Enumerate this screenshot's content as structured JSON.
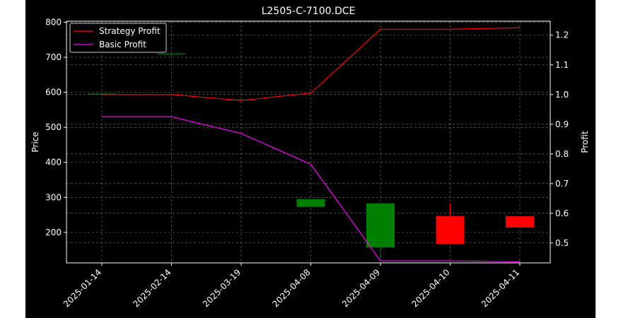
{
  "chart_data": {
    "type": "candlestick",
    "title": "L2505-C-7100.DCE",
    "xlabel": "",
    "ylabel": "Price",
    "ylabel_right": "Profit",
    "categories": [
      "2025-01-14",
      "2025-02-14",
      "2025-03-19",
      "2025-04-08",
      "2025-04-09",
      "2025-04-10",
      "2025-04-11"
    ],
    "ylim": [
      113,
      803
    ],
    "ylim_right": [
      0.433,
      1.247
    ],
    "yticks": [
      200,
      300,
      400,
      500,
      600,
      700,
      800
    ],
    "yticks_right": [
      0.5,
      0.6,
      0.7,
      0.8,
      0.9,
      1.0,
      1.1,
      1.2
    ],
    "grid": true,
    "legend_position": "top-left",
    "candles": [
      {
        "date": "2025-01-14",
        "open": 595,
        "high": 595,
        "low": 595,
        "close": 595
      },
      {
        "date": "2025-02-14",
        "open": 710,
        "high": 710,
        "low": 710,
        "close": 710
      },
      {
        "date": "2025-03-19",
        "open": 578,
        "high": 578,
        "low": 578,
        "close": 578
      },
      {
        "date": "2025-04-08",
        "open": 273,
        "high": 295,
        "low": 273,
        "close": 295
      },
      {
        "date": "2025-04-09",
        "open": 157,
        "high": 283,
        "low": 125,
        "close": 283
      },
      {
        "date": "2025-04-10",
        "open": 247,
        "high": 283,
        "low": 167,
        "close": 167
      },
      {
        "date": "2025-04-11",
        "open": 246,
        "high": 246,
        "low": 214,
        "close": 214
      }
    ],
    "series": [
      {
        "name": "Strategy Profit",
        "axis": "right",
        "color": "#ff0000",
        "values": [
          1.0,
          1.0,
          0.98,
          1.005,
          1.22,
          1.22,
          1.225
        ]
      },
      {
        "name": "Basic Profit",
        "axis": "right",
        "color": "#ff00ff",
        "values": [
          0.925,
          0.925,
          0.869,
          0.765,
          0.44,
          0.44,
          0.437
        ]
      }
    ],
    "colors": {
      "up": "#008000",
      "down": "#ff0000",
      "background": "#000000",
      "grid": "#b0b0b0",
      "text": "#ffffff"
    }
  }
}
